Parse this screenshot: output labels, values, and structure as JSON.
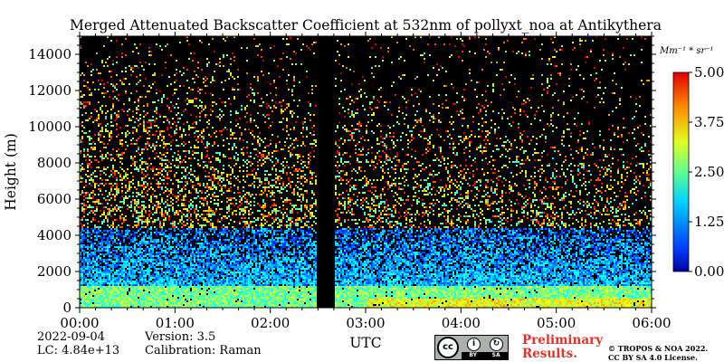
{
  "chart_data": {
    "type": "heatmap",
    "title": "Merged Attenuated Backscatter Coefficient at 532nm of pollyxt_noa at Antikythera",
    "xlabel": "UTC",
    "ylabel": "Height (m)",
    "x_ticks": [
      "00:00",
      "01:00",
      "02:00",
      "03:00",
      "04:00",
      "05:00",
      "06:00"
    ],
    "x_range": [
      "00:00",
      "06:00"
    ],
    "y_ticks": [
      0,
      2000,
      4000,
      6000,
      8000,
      10000,
      12000,
      14000
    ],
    "ylim": [
      0,
      15000
    ],
    "colorbar": {
      "unit": "Mm⁻¹ * sr⁻¹",
      "ticks": [
        "0.00",
        "1.25",
        "2.50",
        "3.75",
        "5.00"
      ],
      "range": [
        0,
        5
      ],
      "colormap": "jet"
    },
    "no_data_interval": [
      "02:30",
      "02:40"
    ],
    "grid": false
  },
  "info": {
    "date": "2022-09-04",
    "lc": "LC: 4.84e+13",
    "version": "Version: 3.5",
    "calibration": "Calibration: Raman",
    "preliminary_line1": "Preliminary",
    "preliminary_line2": "Results.",
    "copyright_line1": "© TROPOS & NOA 2022.",
    "copyright_line2": "CC BY SA 4.0 License."
  },
  "license_badge": {
    "cc": "cc",
    "by": "BY",
    "sa": "SA",
    "colors": {
      "badge": "#aab2ab",
      "prelim": "#e8302a"
    }
  }
}
